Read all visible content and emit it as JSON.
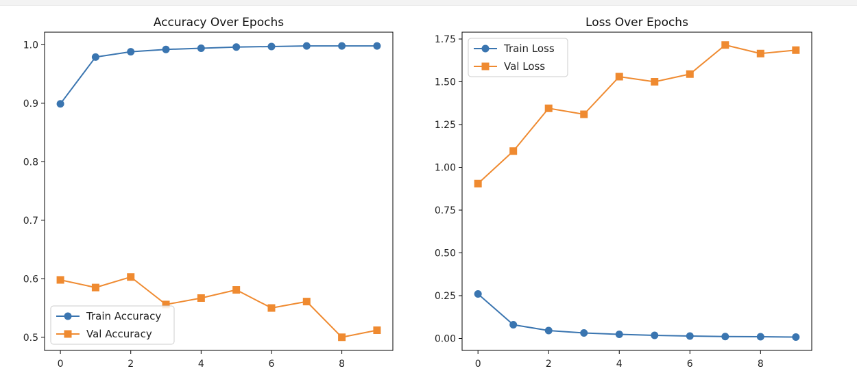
{
  "colors": {
    "train": "#3a75b0",
    "val": "#ef8a30",
    "axis": "#000000",
    "legend_border": "#cccccc"
  },
  "chart_data": [
    {
      "type": "line",
      "title": "Accuracy Over Epochs",
      "xlabel": "",
      "ylabel": "",
      "x": [
        0,
        1,
        2,
        3,
        4,
        5,
        6,
        7,
        8,
        9
      ],
      "xlim": [
        -0.45,
        9.45
      ],
      "ylim": [
        0.4775,
        1.0215
      ],
      "xticks": [
        0,
        2,
        4,
        6,
        8
      ],
      "xtick_labels": [
        "0",
        "2",
        "4",
        "6",
        "8"
      ],
      "yticks": [
        0.5,
        0.6,
        0.7,
        0.8,
        0.9,
        1.0
      ],
      "ytick_labels": [
        "0.5",
        "0.6",
        "0.7",
        "0.8",
        "0.9",
        "1.0"
      ],
      "legend_location": "lower-left",
      "series": [
        {
          "name": "Train Accuracy",
          "marker": "circle",
          "color": "#3a75b0",
          "values": [
            0.899,
            0.979,
            0.988,
            0.992,
            0.994,
            0.996,
            0.997,
            0.998,
            0.998,
            0.998
          ]
        },
        {
          "name": "Val Accuracy",
          "marker": "square",
          "color": "#ef8a30",
          "values": [
            0.598,
            0.585,
            0.603,
            0.556,
            0.567,
            0.581,
            0.55,
            0.561,
            0.5,
            0.512
          ]
        }
      ]
    },
    {
      "type": "line",
      "title": "Loss Over Epochs",
      "xlabel": "",
      "ylabel": "",
      "x": [
        0,
        1,
        2,
        3,
        4,
        5,
        6,
        7,
        8,
        9
      ],
      "xlim": [
        -0.45,
        9.45
      ],
      "ylim": [
        -0.07,
        1.79
      ],
      "xticks": [
        0,
        2,
        4,
        6,
        8
      ],
      "xtick_labels": [
        "0",
        "2",
        "4",
        "6",
        "8"
      ],
      "yticks": [
        0.0,
        0.25,
        0.5,
        0.75,
        1.0,
        1.25,
        1.5,
        1.75
      ],
      "ytick_labels": [
        "0.00",
        "0.25",
        "0.50",
        "0.75",
        "1.00",
        "1.25",
        "1.50",
        "1.75"
      ],
      "legend_location": "upper-left",
      "series": [
        {
          "name": "Train Loss",
          "marker": "circle",
          "color": "#3a75b0",
          "values": [
            0.26,
            0.08,
            0.046,
            0.032,
            0.024,
            0.018,
            0.014,
            0.011,
            0.01,
            0.008
          ]
        },
        {
          "name": "Val Loss",
          "marker": "square",
          "color": "#ef8a30",
          "values": [
            0.905,
            1.095,
            1.345,
            1.31,
            1.53,
            1.5,
            1.545,
            1.715,
            1.665,
            1.685
          ]
        }
      ]
    }
  ]
}
